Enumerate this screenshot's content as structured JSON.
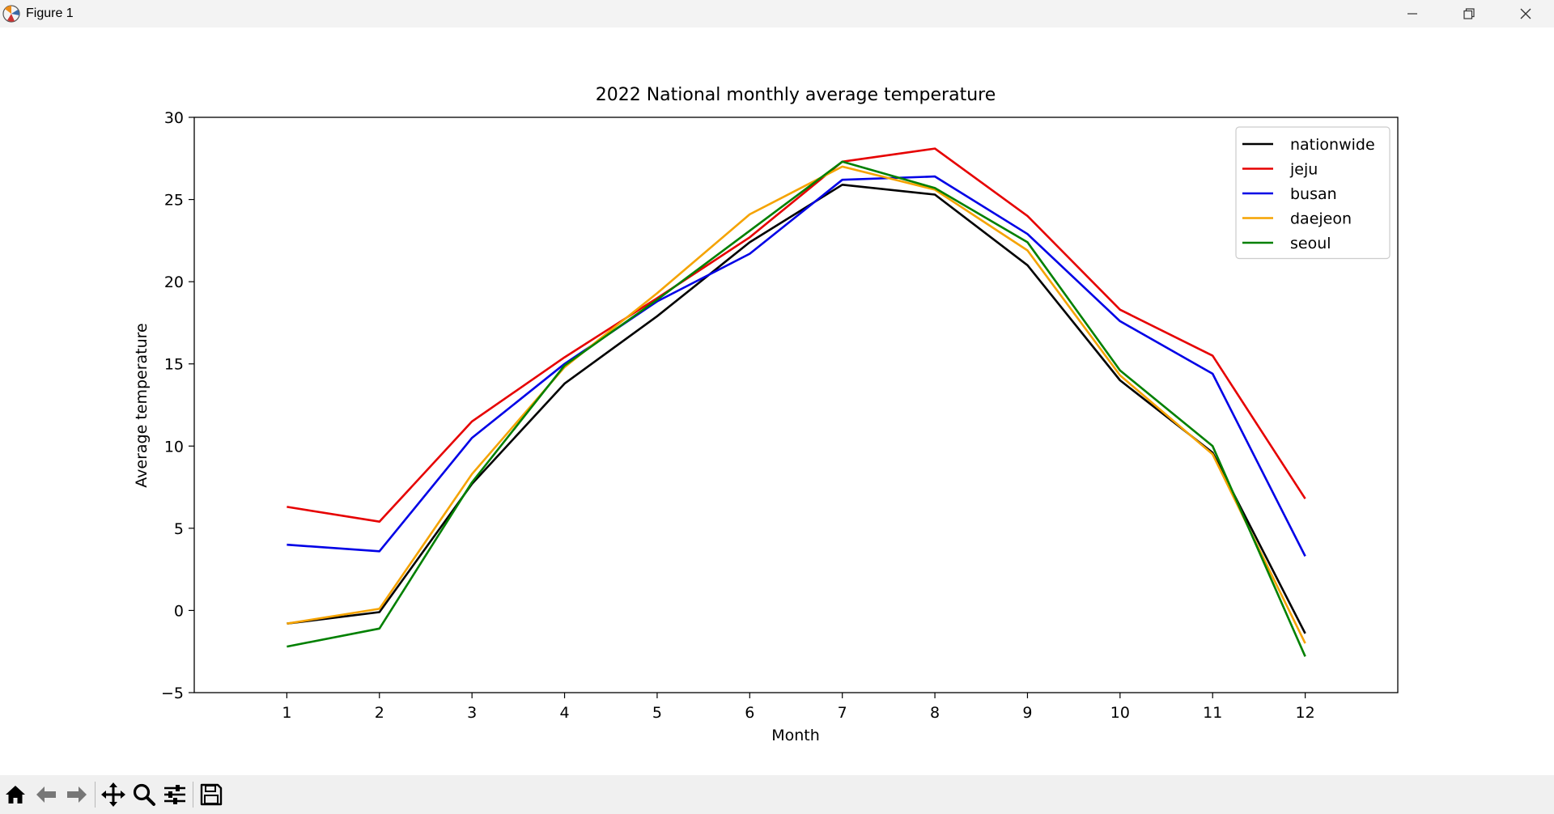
{
  "window": {
    "title": "Figure 1",
    "icon": "matplotlib-icon",
    "controls": [
      "minimize-icon",
      "restore-icon",
      "close-icon"
    ]
  },
  "toolbar": {
    "buttons": [
      "home-icon",
      "back-arrow-icon",
      "forward-arrow-icon",
      "pan-move-icon",
      "zoom-magnifier-icon",
      "configure-subplots-icon",
      "save-floppy-icon"
    ]
  },
  "chart_data": {
    "type": "line",
    "title": "2022 National monthly average temperature",
    "xlabel": "Month",
    "ylabel": "Average temperature",
    "x": [
      1,
      2,
      3,
      4,
      5,
      6,
      7,
      8,
      9,
      10,
      11,
      12
    ],
    "xlim": [
      0,
      13
    ],
    "ylim": [
      -5,
      30
    ],
    "yticks": [
      -5,
      0,
      5,
      10,
      15,
      20,
      25,
      30
    ],
    "grid": false,
    "legend_position": "top-right",
    "series": [
      {
        "name": "nationwide",
        "color": "#000000",
        "values": [
          -0.8,
          -0.1,
          7.7,
          13.8,
          17.9,
          22.4,
          25.9,
          25.3,
          21.0,
          14.0,
          9.6,
          -1.4
        ]
      },
      {
        "name": "jeju",
        "color": "#e60000",
        "values": [
          6.3,
          5.4,
          11.5,
          15.4,
          19.0,
          22.7,
          27.3,
          28.1,
          24.0,
          18.3,
          15.5,
          6.8
        ]
      },
      {
        "name": "busan",
        "color": "#0000e6",
        "values": [
          4.0,
          3.6,
          10.5,
          15.0,
          18.8,
          21.7,
          26.2,
          26.4,
          22.9,
          17.6,
          14.4,
          3.3
        ]
      },
      {
        "name": "daejeon",
        "color": "#f5a300",
        "values": [
          -0.8,
          0.1,
          8.3,
          14.8,
          19.3,
          24.1,
          27.0,
          25.6,
          21.9,
          14.3,
          9.5,
          -2.0
        ]
      },
      {
        "name": "seoul",
        "color": "#008000",
        "values": [
          -2.2,
          -1.1,
          7.8,
          14.9,
          18.9,
          23.1,
          27.3,
          25.7,
          22.4,
          14.6,
          10.0,
          -2.8
        ]
      }
    ]
  }
}
